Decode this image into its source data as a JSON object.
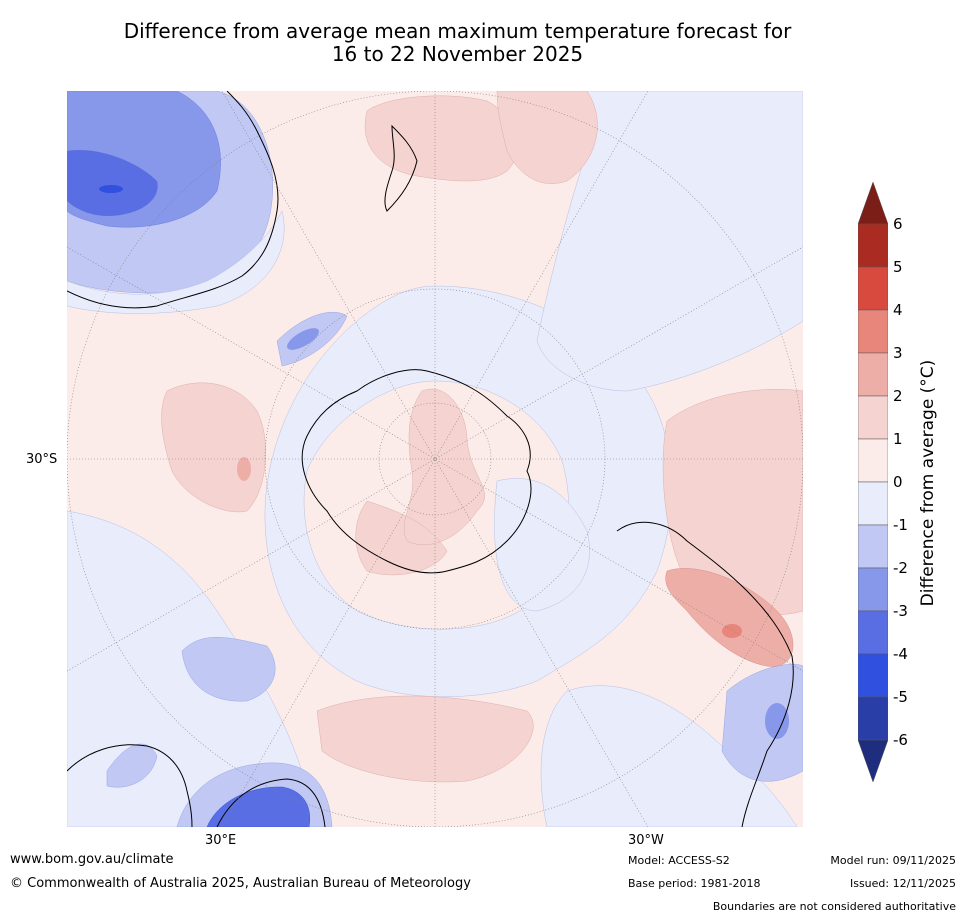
{
  "title_line1": "Difference from average mean maximum temperature forecast for",
  "title_line2": "16 to 22 November 2025",
  "axis_labels": {
    "lat": "30°S",
    "lon_east": "30°E",
    "lon_west": "30°W"
  },
  "colorbar": {
    "title": "Difference from average (°C)",
    "ticks": [
      "6",
      "5",
      "4",
      "3",
      "2",
      "1",
      "0",
      "-1",
      "-2",
      "-3",
      "-4",
      "-5",
      "-6"
    ],
    "colors": {
      "over": "#7a1e17",
      "6to5": "#aa2b22",
      "5to4": "#d94a3e",
      "4to3": "#e8867c",
      "3to2": "#eeaea8",
      "2to1": "#f4d3d1",
      "1to0": "#fbece9",
      "0tom1": "#e8ecfb",
      "m1tom2": "#c0c8f3",
      "m2tom3": "#8797ea",
      "m3tom4": "#5a6ee3",
      "m4tom5": "#3050df",
      "m5tom6": "#2a3ea8",
      "under": "#1f2d7f"
    }
  },
  "footer": {
    "website": "www.bom.gov.au/climate",
    "copyright": "© Commonwealth of Australia 2025, Australian Bureau of Meteorology",
    "model": "Model: ACCESS-S2",
    "base_period": "Base period: 1981-2018",
    "model_run": "Model run: 09/11/2025",
    "issued": "Issued: 12/11/2025",
    "disclaimer": "Boundaries are not considered authoritative"
  }
}
